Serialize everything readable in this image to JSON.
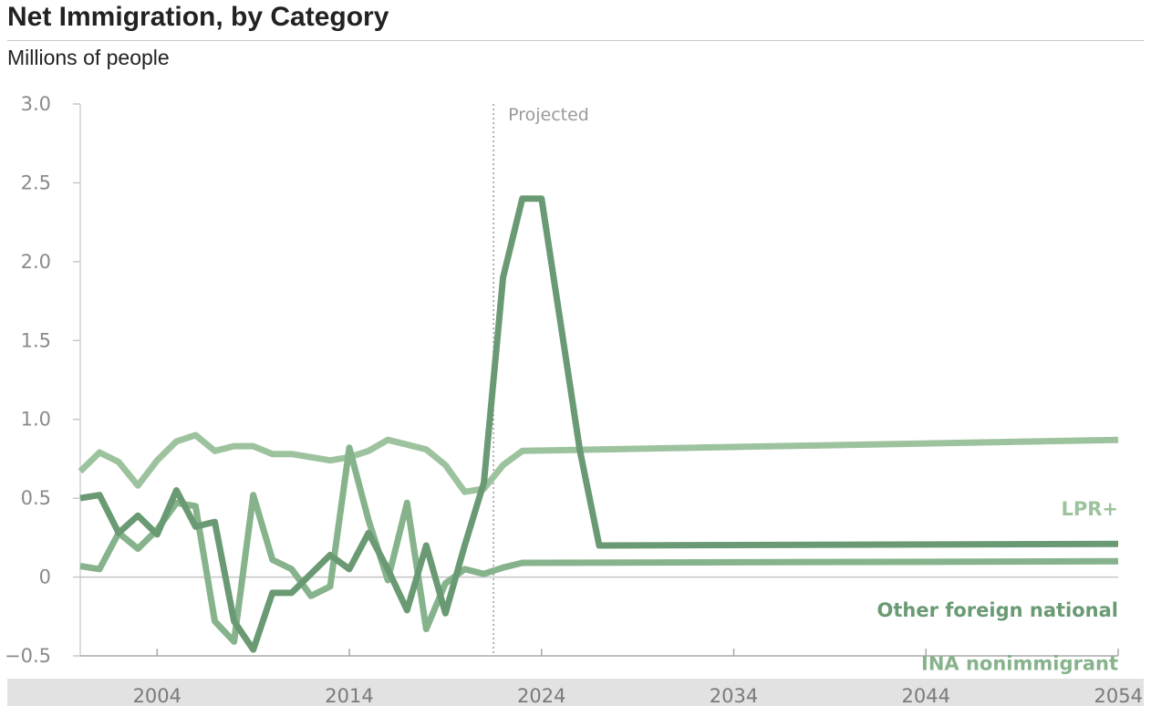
{
  "header": {
    "title": "Net Immigration, by Category",
    "subtitle": "Millions of people"
  },
  "chart_data": {
    "type": "line",
    "title": "Net Immigration, by Category",
    "subtitle": "Millions of people",
    "xlabel": "",
    "ylabel": "",
    "xlim": [
      2000,
      2054
    ],
    "ylim": [
      -0.5,
      3.0
    ],
    "x_ticks": [
      2004,
      2014,
      2024,
      2034,
      2044,
      2054
    ],
    "x_tick_labels": [
      "2004",
      "2014",
      "2024",
      "2034",
      "2044",
      "2054"
    ],
    "y_ticks": [
      -0.5,
      0,
      0.5,
      1.0,
      1.5,
      2.0,
      2.5,
      3.0
    ],
    "y_tick_labels": [
      "−0.5",
      "0",
      "0.5",
      "1.0",
      "1.5",
      "2.0",
      "2.5",
      "3.0"
    ],
    "zero_line": true,
    "grid": false,
    "annotations": [
      {
        "text": "Projected",
        "x": 2021.5
      }
    ],
    "series": [
      {
        "name": "LPR+",
        "color": "#9dc39e",
        "x": [
          2000,
          2001,
          2002,
          2003,
          2004,
          2005,
          2006,
          2007,
          2008,
          2009,
          2010,
          2011,
          2012,
          2013,
          2014,
          2015,
          2016,
          2017,
          2018,
          2019,
          2020,
          2021,
          2022,
          2023,
          2054
        ],
        "y": [
          0.67,
          0.79,
          0.73,
          0.58,
          0.74,
          0.86,
          0.9,
          0.8,
          0.83,
          0.83,
          0.78,
          0.78,
          0.76,
          0.74,
          0.76,
          0.8,
          0.87,
          0.84,
          0.81,
          0.71,
          0.54,
          0.56,
          0.71,
          0.8,
          0.87
        ]
      },
      {
        "name": "Other foreign national",
        "color": "#6a9a73",
        "x": [
          2000,
          2001,
          2002,
          2003,
          2004,
          2005,
          2006,
          2007,
          2008,
          2009,
          2010,
          2011,
          2012,
          2013,
          2014,
          2015,
          2016,
          2017,
          2018,
          2019,
          2020,
          2021,
          2022,
          2023,
          2024,
          2025,
          2026,
          2027,
          2054
        ],
        "y": [
          0.5,
          0.52,
          0.28,
          0.39,
          0.27,
          0.55,
          0.32,
          0.35,
          -0.28,
          -0.46,
          -0.1,
          -0.1,
          0.02,
          0.14,
          0.05,
          0.28,
          0.05,
          -0.21,
          0.2,
          -0.23,
          0.2,
          0.6,
          1.9,
          2.4,
          2.4,
          1.6,
          0.8,
          0.2,
          0.21
        ]
      },
      {
        "name": "INA nonimmigrant",
        "color": "#86b38b",
        "x": [
          2000,
          2001,
          2002,
          2003,
          2004,
          2005,
          2006,
          2007,
          2008,
          2009,
          2010,
          2011,
          2012,
          2013,
          2014,
          2015,
          2016,
          2017,
          2018,
          2019,
          2020,
          2021,
          2022,
          2023,
          2054
        ],
        "y": [
          0.07,
          0.05,
          0.28,
          0.18,
          0.3,
          0.47,
          0.45,
          -0.28,
          -0.41,
          0.52,
          0.11,
          0.05,
          -0.12,
          -0.06,
          0.82,
          0.36,
          -0.02,
          0.47,
          -0.33,
          -0.04,
          0.05,
          0.02,
          0.06,
          0.09,
          0.1
        ]
      }
    ]
  }
}
